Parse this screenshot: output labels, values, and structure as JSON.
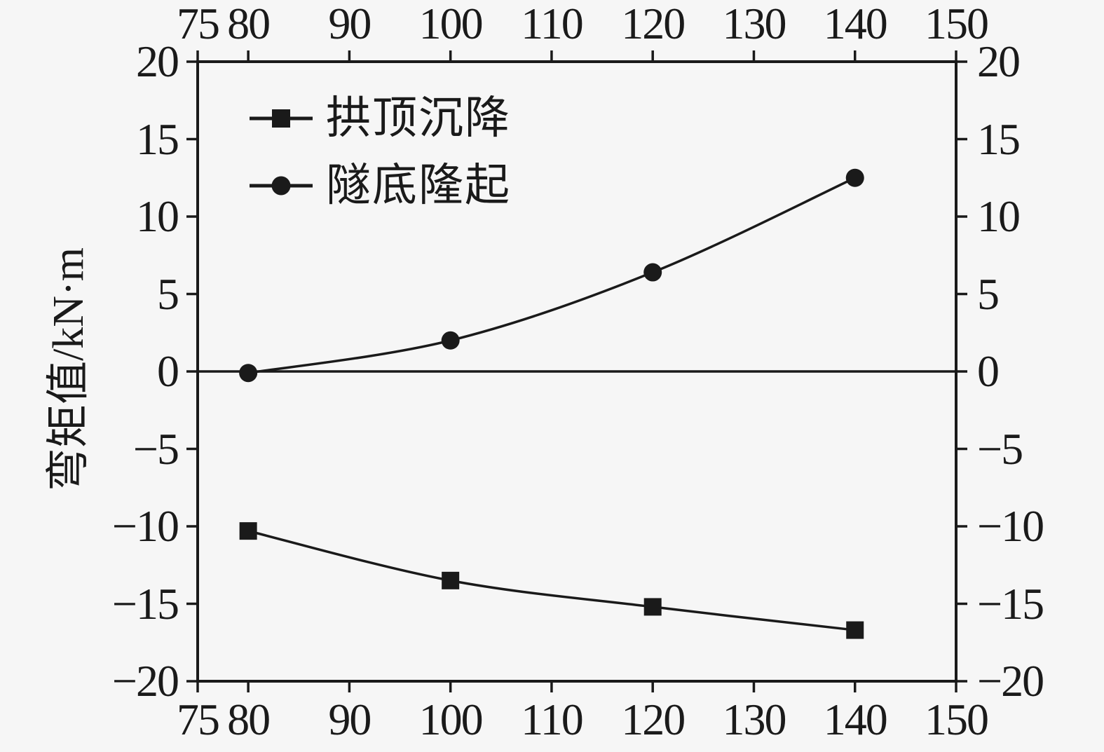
{
  "figure": {
    "background": "#f6f6f6",
    "ink_color": "#1a1a1a"
  },
  "legend": {
    "items": [
      {
        "label": "拱顶沉降",
        "marker": "square"
      },
      {
        "label": "隧底隆起",
        "marker": "circle"
      }
    ]
  },
  "chart_data": {
    "type": "line",
    "title": "",
    "xlabel": "",
    "ylabel": "弯矩值/kN·m",
    "xlim": [
      75,
      150
    ],
    "ylim": [
      -20,
      20
    ],
    "x_ticks": [
      75,
      80,
      90,
      100,
      110,
      120,
      130,
      140,
      150
    ],
    "y_ticks": [
      -20,
      -15,
      -10,
      -5,
      0,
      5,
      10,
      15,
      20
    ],
    "x": [
      80,
      100,
      120,
      140
    ],
    "series": [
      {
        "name": "拱顶沉降",
        "marker": "square",
        "values": [
          -10.3,
          -13.5,
          -15.2,
          -16.7
        ]
      },
      {
        "name": "隧底隆起",
        "marker": "circle",
        "values": [
          -0.1,
          2.0,
          6.4,
          12.5
        ]
      }
    ],
    "grid": false,
    "zero_line": true,
    "legend_position": "upper-left-inside",
    "axes_style": "closed box, ticks outward on all four sides, tick labels on top, bottom, left and right"
  }
}
